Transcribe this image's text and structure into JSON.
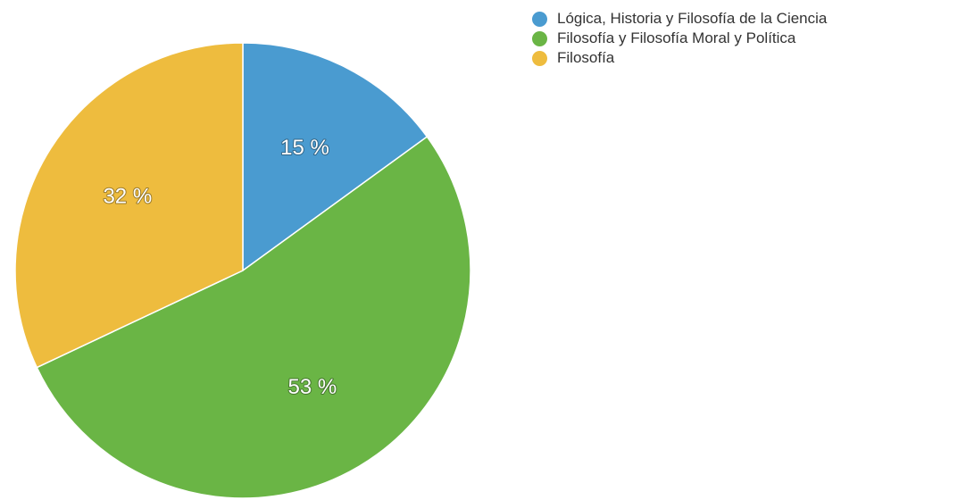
{
  "chart_data": {
    "type": "pie",
    "slices": [
      {
        "name": "Lógica, Historia y Filosofía de la Ciencia",
        "value": 15,
        "label": "15 %",
        "color": "#4a9bd0"
      },
      {
        "name": "Filosofía y Filosofía Moral y Política",
        "value": 53,
        "label": "53 %",
        "color": "#6ab545"
      },
      {
        "name": "Filosofía",
        "value": 32,
        "label": "32 %",
        "color": "#eebc3e"
      }
    ],
    "start": "12 o'clock",
    "direction": "clockwise",
    "legend": "top-right"
  }
}
